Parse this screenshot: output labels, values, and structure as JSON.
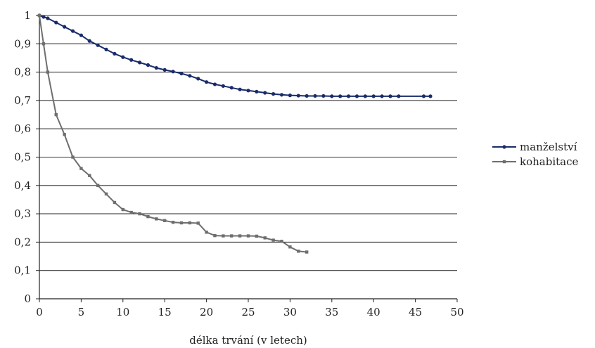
{
  "chart_data": {
    "type": "line",
    "title": "",
    "xlabel": "délka trvání (v letech)",
    "ylabel": "",
    "xlim": [
      0,
      50
    ],
    "ylim": [
      0,
      1
    ],
    "grid": "horizontal",
    "legend": "right",
    "x_ticks": [
      "0",
      "5",
      "10",
      "15",
      "20",
      "25",
      "30",
      "35",
      "40",
      "45",
      "50"
    ],
    "y_ticks": [
      "0",
      "0,1",
      "0,2",
      "0,3",
      "0,4",
      "0,5",
      "0,6",
      "0,7",
      "0,8",
      "0,9",
      "1"
    ],
    "series": [
      {
        "name": "manželství",
        "color": "#1a2b6b",
        "marker": "circle",
        "points": [
          [
            0,
            1.0
          ],
          [
            0.5,
            0.995
          ],
          [
            1,
            0.99
          ],
          [
            2,
            0.975
          ],
          [
            3,
            0.96
          ],
          [
            4,
            0.945
          ],
          [
            5,
            0.93
          ],
          [
            6,
            0.91
          ],
          [
            7,
            0.895
          ],
          [
            8,
            0.88
          ],
          [
            9,
            0.865
          ],
          [
            10,
            0.853
          ],
          [
            11,
            0.843
          ],
          [
            12,
            0.834
          ],
          [
            13,
            0.825
          ],
          [
            14,
            0.815
          ],
          [
            15,
            0.808
          ],
          [
            16,
            0.802
          ],
          [
            17,
            0.795
          ],
          [
            18,
            0.787
          ],
          [
            19,
            0.777
          ],
          [
            20,
            0.765
          ],
          [
            21,
            0.757
          ],
          [
            22,
            0.751
          ],
          [
            23,
            0.745
          ],
          [
            24,
            0.739
          ],
          [
            25,
            0.735
          ],
          [
            26,
            0.731
          ],
          [
            27,
            0.727
          ],
          [
            28,
            0.723
          ],
          [
            29,
            0.72
          ],
          [
            30,
            0.718
          ],
          [
            31,
            0.717
          ],
          [
            32,
            0.716
          ],
          [
            33,
            0.716
          ],
          [
            34,
            0.716
          ],
          [
            35,
            0.715
          ],
          [
            36,
            0.715
          ],
          [
            37,
            0.715
          ],
          [
            38,
            0.715
          ],
          [
            39,
            0.715
          ],
          [
            40,
            0.715
          ],
          [
            41,
            0.715
          ],
          [
            42,
            0.715
          ],
          [
            43,
            0.715
          ],
          [
            46,
            0.715
          ],
          [
            46.8,
            0.715
          ]
        ]
      },
      {
        "name": "kohabitace",
        "color": "#6e6e6e",
        "marker": "square",
        "points": [
          [
            0,
            1.0
          ],
          [
            0.5,
            0.9
          ],
          [
            1,
            0.8
          ],
          [
            2,
            0.65
          ],
          [
            3,
            0.58
          ],
          [
            4,
            0.5
          ],
          [
            5,
            0.46
          ],
          [
            6,
            0.435
          ],
          [
            7,
            0.4
          ],
          [
            8,
            0.37
          ],
          [
            9,
            0.34
          ],
          [
            10,
            0.315
          ],
          [
            11,
            0.305
          ],
          [
            12,
            0.3
          ],
          [
            13,
            0.29
          ],
          [
            14,
            0.282
          ],
          [
            15,
            0.276
          ],
          [
            16,
            0.27
          ],
          [
            17,
            0.268
          ],
          [
            18,
            0.268
          ],
          [
            19,
            0.267
          ],
          [
            20,
            0.235
          ],
          [
            21,
            0.223
          ],
          [
            22,
            0.222
          ],
          [
            23,
            0.222
          ],
          [
            24,
            0.222
          ],
          [
            25,
            0.222
          ],
          [
            26,
            0.221
          ],
          [
            27,
            0.215
          ],
          [
            28,
            0.207
          ],
          [
            29,
            0.203
          ],
          [
            30,
            0.183
          ],
          [
            31,
            0.168
          ],
          [
            32,
            0.165
          ]
        ]
      }
    ]
  }
}
